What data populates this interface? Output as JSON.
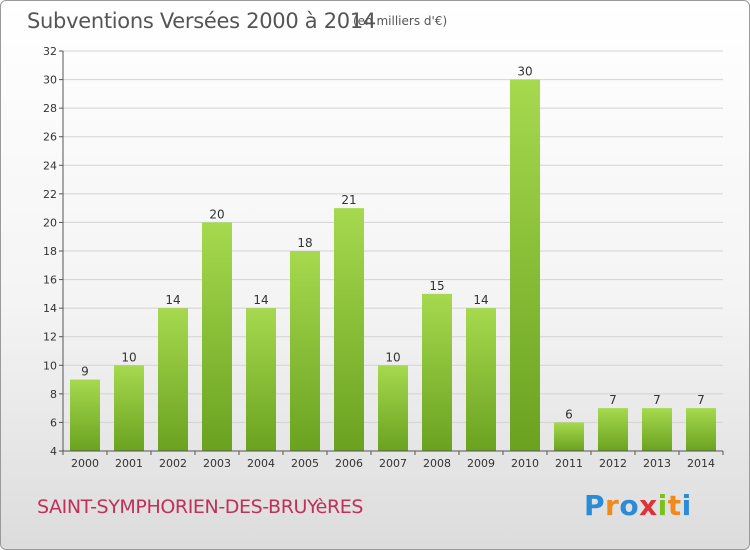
{
  "header": {
    "title": "Subventions Versées 2000 à 2014",
    "subtitle": "(en milliers d'€)"
  },
  "footer": {
    "commune": "SAINT-SYMPHORIEN-DES-BRUYèRES",
    "logo": {
      "letters": [
        "P",
        "r",
        "o",
        "x",
        "i",
        "t",
        "i"
      ],
      "colors": [
        "#2a8bd6",
        "#f08a1c",
        "#2a8bd6",
        "#e0303a",
        "#7cc020",
        "#f08a1c",
        "#2a8bd6"
      ]
    }
  },
  "colors": {
    "bar_light": "#a6d94e",
    "bar_dark": "#6aa220",
    "grid": "#d3d3d3",
    "axis": "#555555"
  },
  "chart_data": {
    "type": "bar",
    "categories": [
      "2000",
      "2001",
      "2002",
      "2003",
      "2004",
      "2005",
      "2006",
      "2007",
      "2008",
      "2009",
      "2010",
      "2011",
      "2012",
      "2013",
      "2014"
    ],
    "values": [
      9,
      10,
      14,
      20,
      14,
      18,
      21,
      10,
      15,
      14,
      30,
      6,
      7,
      7,
      7
    ],
    "title": "Subventions Versées 2000 à 2014",
    "xlabel": "",
    "ylabel": "",
    "ylim": [
      4,
      32
    ],
    "yticks": [
      4,
      6,
      8,
      10,
      12,
      14,
      16,
      18,
      20,
      22,
      24,
      26,
      28,
      30,
      32
    ],
    "grid": true,
    "data_labels": true
  }
}
